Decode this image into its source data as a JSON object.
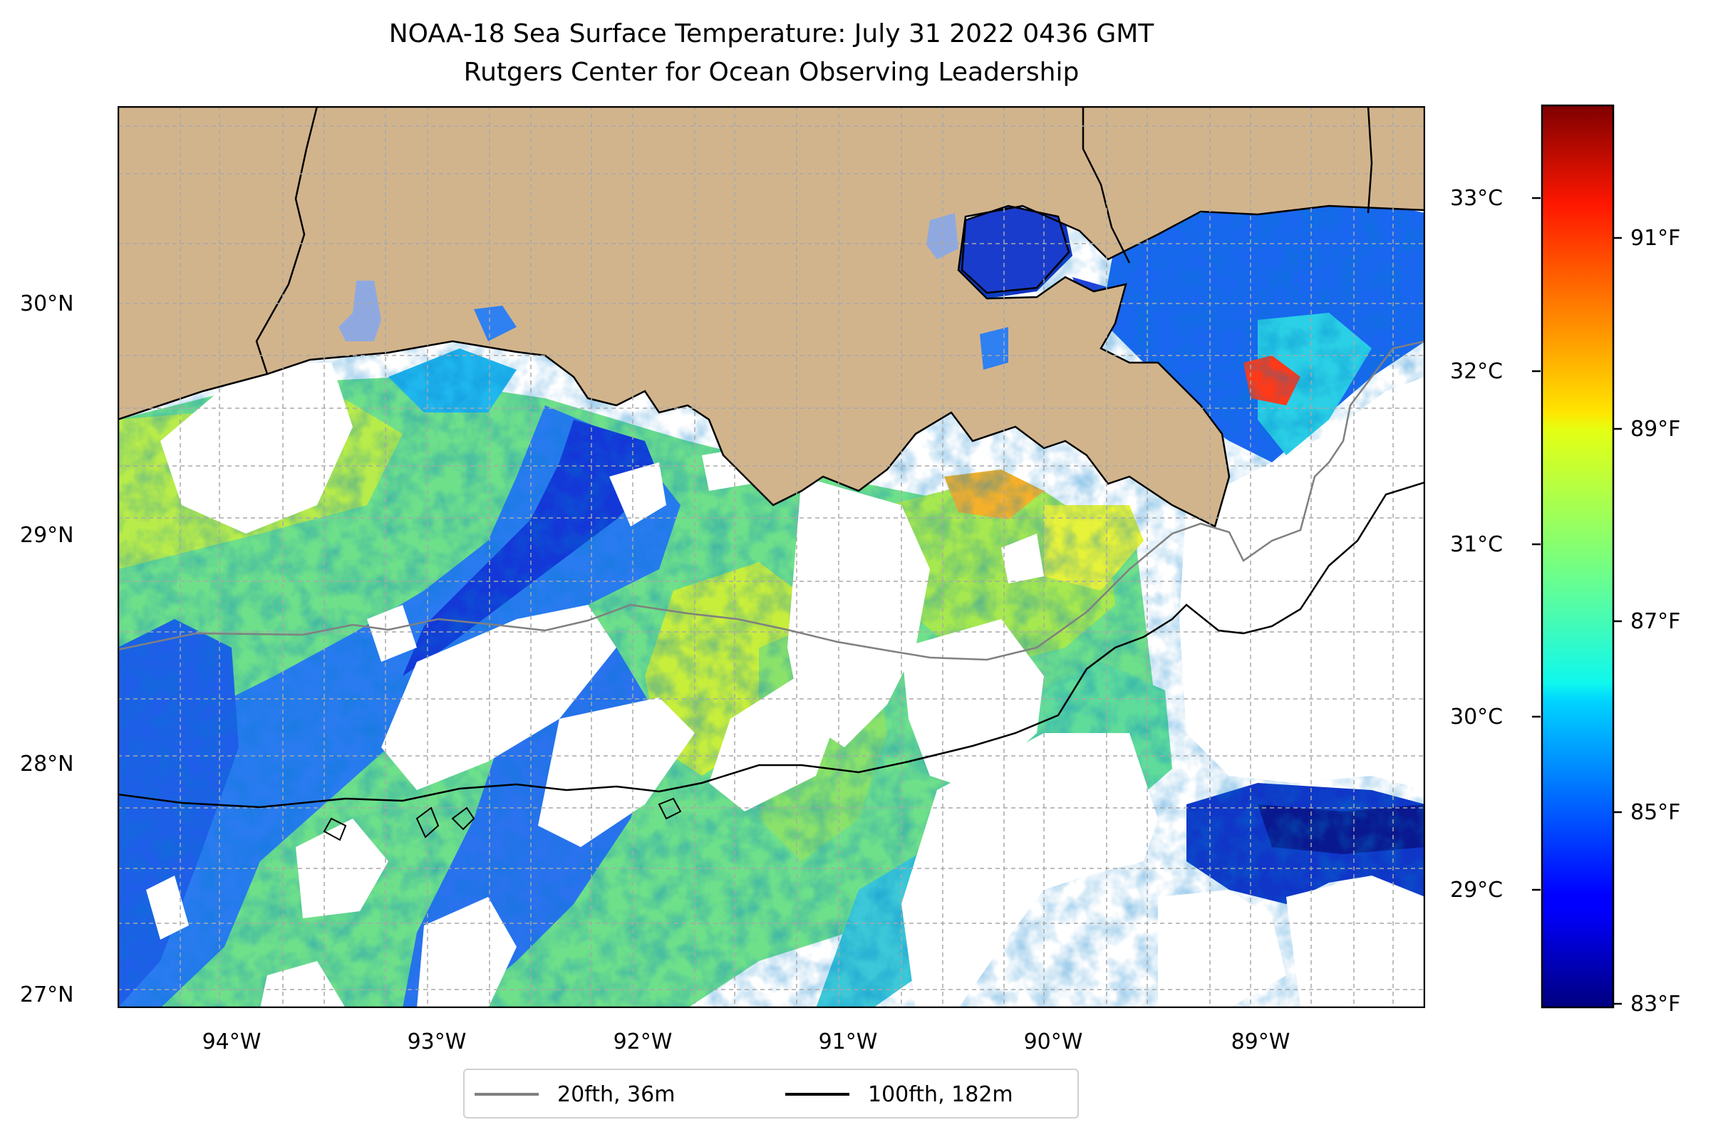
{
  "title": "NOAA-18 Sea Surface Temperature: July 31 2022 0436 GMT",
  "subtitle": "Rutgers Center for Ocean Observing Leadership",
  "map": {
    "lon_range": [
      -94.55,
      -88.2
    ],
    "lat_range": [
      26.95,
      30.85
    ],
    "lat_ticks": [
      "30°N",
      "29°N",
      "28°N",
      "27°N"
    ],
    "lon_ticks": [
      "94°W",
      "93°W",
      "92°W",
      "91°W",
      "90°W",
      "89°W"
    ],
    "land_color": "#d2b48c",
    "grid": true,
    "colormap": "jet"
  },
  "colorbar": {
    "celsius_range": [
      28.3,
      33.5
    ],
    "celsius_labels": [
      "33°C",
      "32°C",
      "31°C",
      "30°C",
      "29°C"
    ],
    "fahrenheit_labels": [
      "91°F",
      "89°F",
      "87°F",
      "85°F",
      "83°F"
    ]
  },
  "legend": {
    "items": [
      {
        "label": "20fth, 36m",
        "color": "#808080"
      },
      {
        "label": "100fth, 182m",
        "color": "#000000"
      }
    ]
  }
}
